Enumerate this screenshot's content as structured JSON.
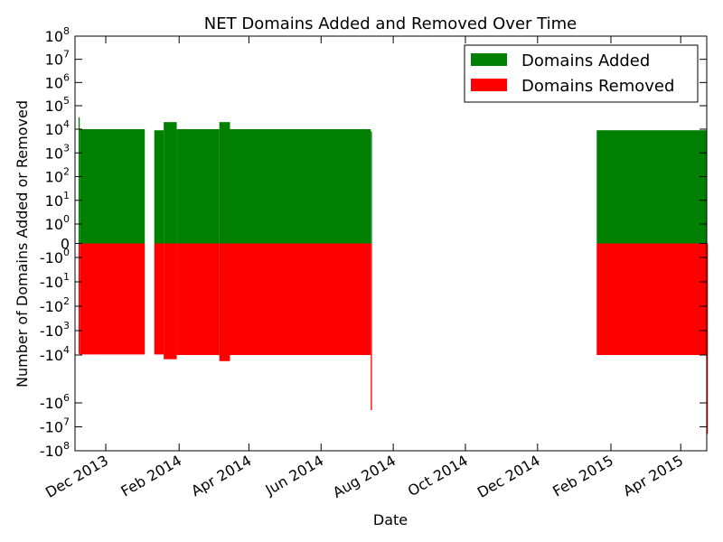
{
  "chart_data": {
    "type": "bar",
    "title": "NET Domains Added and Removed Over Time",
    "xlabel": "Date",
    "ylabel": "Number of Domains Added or Removed",
    "yscale": "symlog",
    "ylim": [
      -100000000,
      100000000
    ],
    "xlim": [
      "2013-11-05",
      "2015-04-23"
    ],
    "grid": false,
    "legend_position": "upper-right",
    "x_ticks": [
      {
        "date": "2013-12-01",
        "label": "Dec 2013"
      },
      {
        "date": "2014-02-01",
        "label": "Feb 2014"
      },
      {
        "date": "2014-04-01",
        "label": "Apr 2014"
      },
      {
        "date": "2014-06-01",
        "label": "Jun 2014"
      },
      {
        "date": "2014-08-01",
        "label": "Aug 2014"
      },
      {
        "date": "2014-10-01",
        "label": "Oct 2014"
      },
      {
        "date": "2014-12-01",
        "label": "Dec 2014"
      },
      {
        "date": "2015-02-01",
        "label": "Feb 2015"
      },
      {
        "date": "2015-04-01",
        "label": "Apr 2015"
      }
    ],
    "y_ticks": [
      {
        "value": 100000000,
        "base": "10",
        "exp": "8"
      },
      {
        "value": 10000000,
        "base": "10",
        "exp": "7"
      },
      {
        "value": 1000000,
        "base": "10",
        "exp": "6"
      },
      {
        "value": 100000,
        "base": "10",
        "exp": "5"
      },
      {
        "value": 10000,
        "base": "10",
        "exp": "4"
      },
      {
        "value": 1000,
        "base": "10",
        "exp": "3"
      },
      {
        "value": 100,
        "base": "10",
        "exp": "2"
      },
      {
        "value": 10,
        "base": "10",
        "exp": "1"
      },
      {
        "value": 1,
        "base": "10",
        "exp": "0"
      },
      {
        "value": 0,
        "base": "0",
        "exp": ""
      },
      {
        "value": -1,
        "base": "-10",
        "exp": "0"
      },
      {
        "value": -10,
        "base": "-10",
        "exp": "1"
      },
      {
        "value": -100,
        "base": "-10",
        "exp": "2"
      },
      {
        "value": -1000,
        "base": "-10",
        "exp": "3"
      },
      {
        "value": -10000,
        "base": "-10",
        "exp": "4"
      },
      {
        "value": -1000000,
        "base": "-10",
        "exp": "6"
      },
      {
        "value": -10000000,
        "base": "-10",
        "exp": "7"
      },
      {
        "value": -100000000,
        "base": "-10",
        "exp": "8"
      }
    ],
    "periods": [
      {
        "start": "2013-11-08",
        "end": "2013-11-09",
        "added": 32000,
        "removed": 9000
      },
      {
        "start": "2013-11-09",
        "end": "2014-01-03",
        "added": 10000,
        "removed": 9500
      },
      {
        "start": "2014-01-11",
        "end": "2014-01-19",
        "added": 9000,
        "removed": 9500
      },
      {
        "start": "2014-01-19",
        "end": "2014-01-30",
        "added": 20000,
        "removed": 15000
      },
      {
        "start": "2014-01-30",
        "end": "2014-03-07",
        "added": 10000,
        "removed": 10000
      },
      {
        "start": "2014-03-07",
        "end": "2014-03-16",
        "added": 20000,
        "removed": 18000
      },
      {
        "start": "2014-03-16",
        "end": "2014-07-13",
        "added": 10000,
        "removed": 10000
      },
      {
        "start": "2014-07-13",
        "end": "2014-07-14",
        "added": 8000,
        "removed": 2000000
      },
      {
        "start": "2015-01-20",
        "end": "2015-04-23",
        "added": 9000,
        "removed": 10000
      },
      {
        "start": "2015-04-23",
        "end": "2015-04-24",
        "added": 0,
        "removed": 20000000
      }
    ],
    "series": [
      {
        "name": "Domains Added",
        "color": "#008000"
      },
      {
        "name": "Domains Removed",
        "color": "#ff0000"
      }
    ]
  }
}
